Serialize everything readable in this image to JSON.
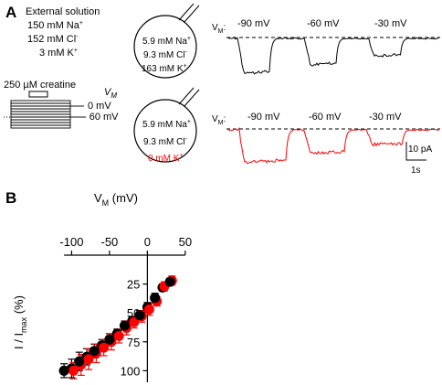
{
  "panel_a": {
    "label": "A",
    "external": {
      "title": "External solution",
      "na": "150 mM Na",
      "cl": "152 mM Cl",
      "k": "3 mM K"
    },
    "protocol": {
      "creatine": "250 µM creatine",
      "vm_label": "V",
      "vm_sub": "M",
      "v0": "0 mV",
      "v60": "- 60 mV"
    },
    "cell1": {
      "na": "5.9 mM Na",
      "cl": "9.3 mM Cl",
      "k": "163 mM K"
    },
    "cell2": {
      "na": "5.9 mM Na",
      "cl": "9.3 mM Cl",
      "k": "0 mM K"
    },
    "traces": {
      "vm_label": "V",
      "vm_sub": "M",
      "voltages": [
        "-90 mV",
        "-60 mV",
        "-30 mV"
      ],
      "scale_current": "10 pA",
      "scale_time": "1s"
    },
    "colors": {
      "control": "#000000",
      "zero_k": "#ff0000"
    }
  },
  "panel_b": {
    "label": "B",
    "chart_data": {
      "type": "scatter",
      "xlabel": "V",
      "xlabel_sub": "M",
      "xlabel_unit": " (mV)",
      "ylabel": "I / I",
      "ylabel_sub": "max",
      "ylabel_unit": " (%)",
      "xlim": [
        -120,
        50
      ],
      "ylim": [
        0,
        110
      ],
      "y_inverted": true,
      "x_ticks": [
        "-100",
        "-50",
        "0",
        "50"
      ],
      "y_ticks": [
        "25",
        "50",
        "75",
        "100"
      ],
      "series": [
        {
          "color": "#000000",
          "x": [
            -110,
            -100,
            -90,
            -80,
            -70,
            -60,
            -50,
            -40,
            -30,
            -20,
            -10,
            0,
            10,
            20,
            30
          ],
          "y": [
            100,
            98,
            92,
            88,
            83,
            78,
            73,
            68,
            61,
            57,
            52,
            45,
            37,
            28,
            23
          ],
          "err": [
            6,
            8,
            8,
            7,
            6,
            5,
            5,
            4,
            4,
            4,
            4,
            4,
            4,
            3,
            3
          ]
        },
        {
          "color": "#ff0000",
          "x": [
            -100,
            -90,
            -80,
            -70,
            -60,
            -50,
            -40,
            -30,
            -20,
            -10,
            0,
            10,
            20,
            30
          ],
          "y": [
            100,
            95,
            90,
            85,
            80,
            75,
            70,
            63,
            58,
            53,
            47,
            40,
            27,
            22
          ],
          "err": [
            7,
            9,
            9,
            8,
            7,
            7,
            6,
            6,
            5,
            5,
            5,
            4,
            4,
            4
          ]
        }
      ]
    }
  }
}
